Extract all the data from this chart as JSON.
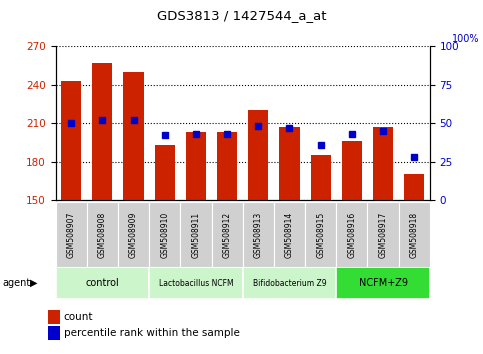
{
  "title": "GDS3813 / 1427544_a_at",
  "samples": [
    "GSM508907",
    "GSM508908",
    "GSM508909",
    "GSM508910",
    "GSM508911",
    "GSM508912",
    "GSM508913",
    "GSM508914",
    "GSM508915",
    "GSM508916",
    "GSM508917",
    "GSM508918"
  ],
  "count_values": [
    243,
    257,
    250,
    193,
    203,
    203,
    220,
    207,
    185,
    196,
    207,
    170
  ],
  "percentile_values": [
    50,
    52,
    52,
    42,
    43,
    43,
    48,
    47,
    36,
    43,
    45,
    28
  ],
  "ylim_left": [
    150,
    270
  ],
  "ylim_right": [
    0,
    100
  ],
  "yticks_left": [
    150,
    180,
    210,
    240,
    270
  ],
  "yticks_right": [
    0,
    25,
    50,
    75,
    100
  ],
  "bar_color": "#cc2200",
  "percentile_color": "#0000cc",
  "plot_bg": "#ffffff",
  "base_value": 150,
  "group_data": [
    {
      "label": "control",
      "cols": [
        0,
        1,
        2
      ],
      "color": "#ccf5cc"
    },
    {
      "label": "Lactobacillus NCFM",
      "cols": [
        3,
        4,
        5
      ],
      "color": "#ccf5cc"
    },
    {
      "label": "Bifidobacterium Z9",
      "cols": [
        6,
        7,
        8
      ],
      "color": "#ccf5cc"
    },
    {
      "label": "NCFM+Z9",
      "cols": [
        9,
        10,
        11
      ],
      "color": "#33dd33"
    }
  ],
  "legend_count_color": "#cc2200",
  "legend_percentile_color": "#0000cc"
}
